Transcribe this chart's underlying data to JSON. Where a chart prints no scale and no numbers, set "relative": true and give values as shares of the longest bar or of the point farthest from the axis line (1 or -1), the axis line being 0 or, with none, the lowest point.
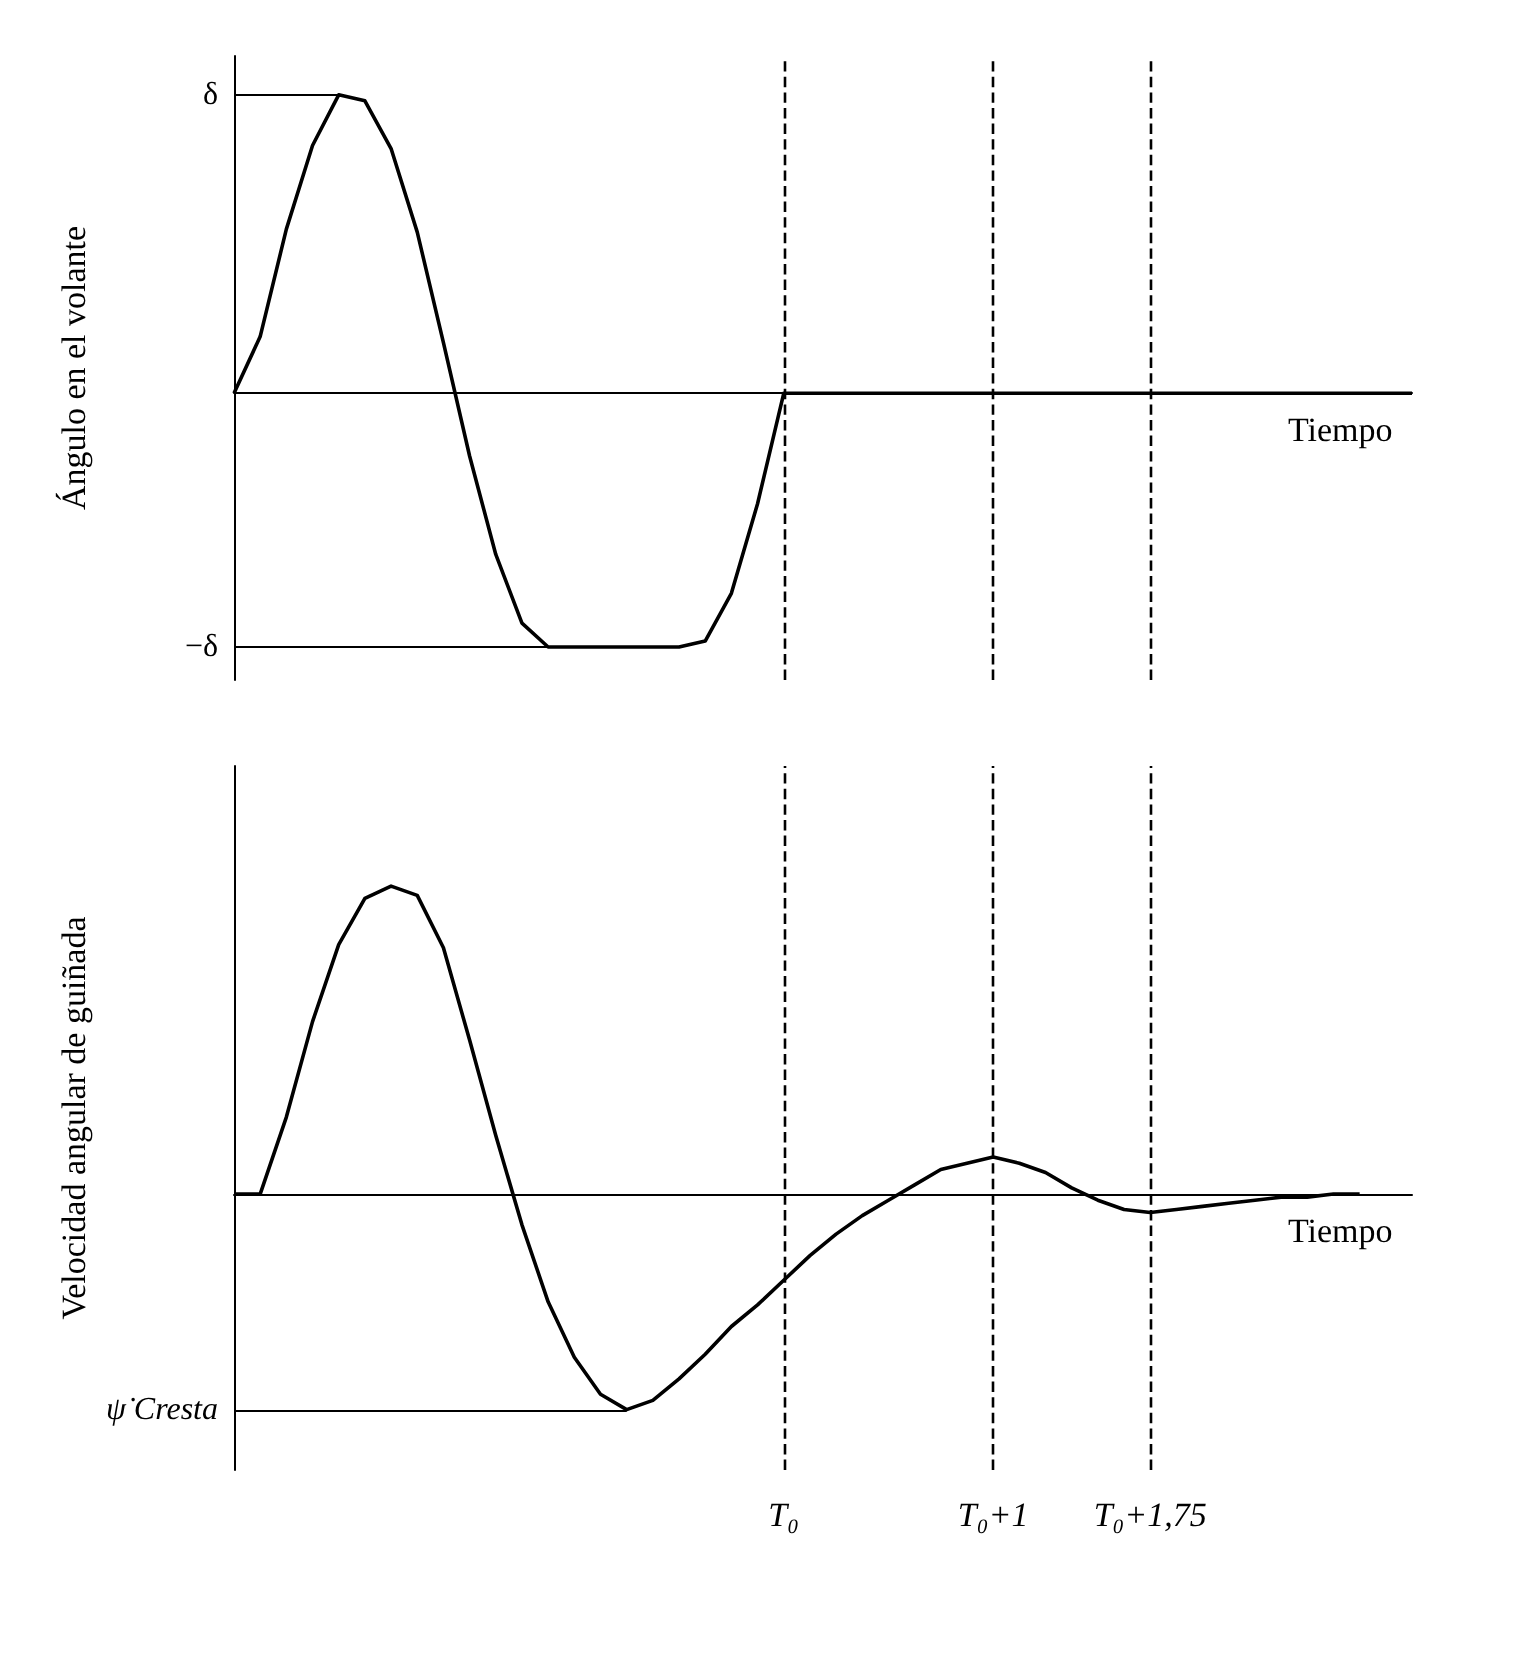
{
  "chart_data": [
    {
      "type": "line",
      "ylabel": "Ángulo en el volante",
      "xlabel": "Tiempo",
      "relative": true,
      "tick_labels": false,
      "marker": "none",
      "color": "#000000",
      "categories": [
        null,
        null,
        null,
        null,
        null,
        null,
        null,
        null,
        null,
        null,
        null,
        null,
        null,
        null,
        null,
        null,
        null,
        null,
        null,
        null,
        null,
        "T₀",
        null,
        null,
        null,
        null,
        null,
        null,
        null,
        "T₀+1",
        null,
        null,
        null,
        null,
        null,
        "T₀+1,75",
        null,
        null,
        null,
        null,
        null,
        null,
        null,
        null,
        null,
        null
      ],
      "values": [
        0,
        0.19,
        0.55,
        0.83,
        1,
        0.98,
        0.82,
        0.54,
        0.17,
        -0.21,
        -0.54,
        -0.77,
        -0.85,
        -0.85,
        -0.85,
        -0.85,
        -0.85,
        -0.85,
        -0.83,
        -0.67,
        -0.37,
        0,
        0,
        0,
        0,
        0,
        0,
        0,
        0,
        0,
        0,
        0,
        0,
        0,
        0,
        0,
        0,
        0,
        0,
        0,
        0,
        0,
        0,
        0,
        0,
        0
      ],
      "annotations": [
        "δ",
        "−δ"
      ],
      "ref_lines": [
        {
          "axis": "x",
          "value": "T₀",
          "line_style": "dashed"
        },
        {
          "axis": "x",
          "value": "T₀+1",
          "line_style": "dashed"
        },
        {
          "axis": "x",
          "value": "T₀+1,75",
          "line_style": "dashed"
        }
      ]
    },
    {
      "type": "line",
      "ylabel": "Velocidad angular de guiñada",
      "xlabel": "Tiempo",
      "relative": true,
      "tick_labels": "x",
      "marker": "none",
      "color": "#000000",
      "categories": [
        null,
        null,
        null,
        null,
        null,
        null,
        null,
        null,
        null,
        null,
        null,
        null,
        null,
        null,
        null,
        null,
        null,
        null,
        null,
        null,
        null,
        "T₀",
        null,
        null,
        null,
        null,
        null,
        null,
        null,
        "T₀+1",
        null,
        null,
        null,
        null,
        null,
        "T₀+1,75",
        null,
        null,
        null,
        null,
        null,
        null,
        null,
        null,
        null,
        null
      ],
      "values": [
        0,
        0,
        0.25,
        0.56,
        0.81,
        0.96,
        1,
        0.97,
        0.8,
        0.5,
        0.19,
        -0.1,
        -0.35,
        -0.53,
        -0.65,
        -0.7,
        -0.67,
        -0.6,
        -0.52,
        -0.43,
        -0.36,
        -0.28,
        -0.2,
        -0.13,
        -0.07,
        -0.02,
        0.03,
        0.08,
        0.1,
        0.12,
        0.1,
        0.07,
        0.02,
        -0.02,
        -0.05,
        -0.06,
        -0.05,
        -0.04,
        -0.03,
        -0.02,
        -0.01,
        -0.01,
        0,
        0,
        null,
        null
      ],
      "annotations": [
        "ψ̇ Cresta"
      ],
      "ref_lines": [
        {
          "axis": "x",
          "value": "T₀",
          "line_style": "dashed"
        },
        {
          "axis": "x",
          "value": "T₀+1",
          "line_style": "dashed"
        },
        {
          "axis": "x",
          "value": "T₀+1,75",
          "line_style": "dashed"
        }
      ]
    }
  ]
}
